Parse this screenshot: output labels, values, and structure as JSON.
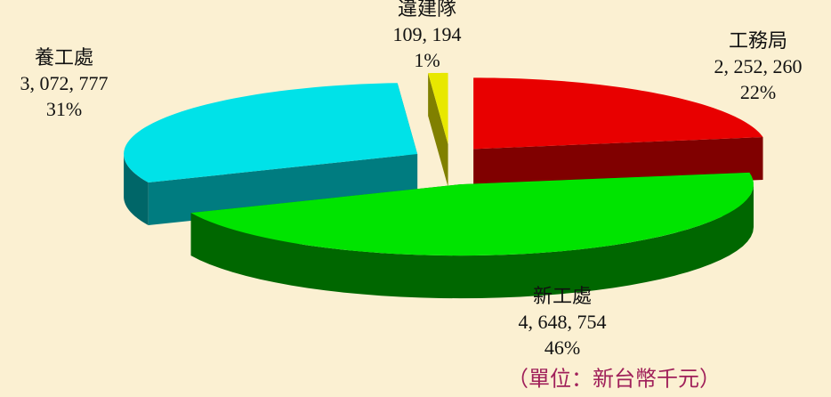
{
  "chart_data": {
    "type": "pie",
    "categories": [
      "工務局",
      "新工處",
      "養工處",
      "違建隊"
    ],
    "values": [
      2252260,
      4648754,
      3072777,
      109194
    ],
    "value_labels": [
      "2, 252, 260",
      "4, 648, 754",
      "3, 072, 777",
      "109, 194"
    ],
    "percents": [
      22,
      46,
      31,
      1
    ],
    "percent_labels": [
      "22%",
      "46%",
      "31%",
      "1%"
    ],
    "colors": [
      "#e80000",
      "#00e400",
      "#00e2e8",
      "#e8e800"
    ],
    "note": "（單位：新台幣千元）"
  }
}
